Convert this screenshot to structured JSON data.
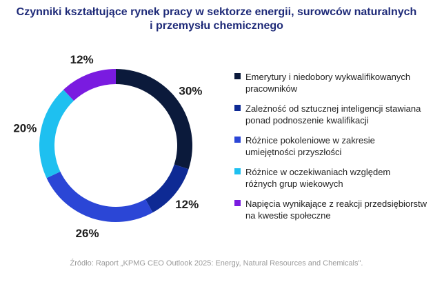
{
  "title_line1": "Czynniki kształtujące rynek pracy w sektorze energii, surowców naturalnych",
  "title_line2": "i przemysłu chemicznego",
  "source": "Źródło: Raport „KPMG CEO Outlook 2025: Energy, Natural Resources and Chemicals\".",
  "chart_data": {
    "type": "pie",
    "donut": true,
    "legend_position": "right",
    "series": [
      {
        "label": "Emerytury i niedobory wykwalifikowanych\npracowników",
        "value": 30,
        "value_label": "30%",
        "color": "#0b1a3b"
      },
      {
        "label": "Zależność od sztucznej inteligencji stawiana\nponad podnoszenie kwalifikacji",
        "value": 12,
        "value_label": "12%",
        "color": "#0e2a94"
      },
      {
        "label": "Różnice pokoleniowe w zakresie\numiejętności przyszłości",
        "value": 26,
        "value_label": "26%",
        "color": "#2b46d6"
      },
      {
        "label": "Różnice w oczekiwaniach względem\nróżnych grup wiekowych",
        "value": 20,
        "value_label": "20%",
        "color": "#1ec0f0"
      },
      {
        "label": "Napięcia wynikające z reakcji przedsiębiorstw\nna kwestie społeczne",
        "value": 12,
        "value_label": "12%",
        "color": "#7a1be0"
      }
    ]
  }
}
